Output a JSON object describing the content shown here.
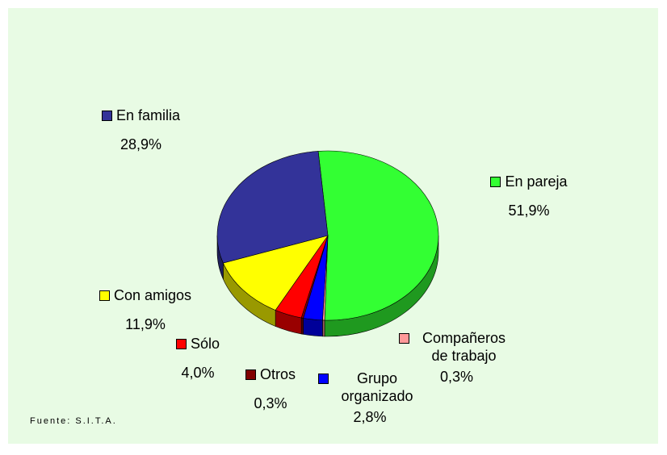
{
  "chart_data": {
    "type": "pie",
    "categories": [
      "En pareja",
      "Compañeros de trabajo",
      "Grupo organizado",
      "Otros",
      "Sólo",
      "Con amigos",
      "En familia"
    ],
    "values": [
      51.9,
      0.3,
      2.8,
      0.3,
      4.0,
      11.9,
      28.9
    ],
    "value_labels": [
      "51,9%",
      "0,3%",
      "2,8%",
      "0,3%",
      "4,0%",
      "11,9%",
      "28,9%"
    ],
    "colors": [
      "#33ff33",
      "#ff9999",
      "#0000ff",
      "#800000",
      "#ff0000",
      "#ffff00",
      "#333399"
    ],
    "source": "Fuente: S.I.T.A."
  }
}
